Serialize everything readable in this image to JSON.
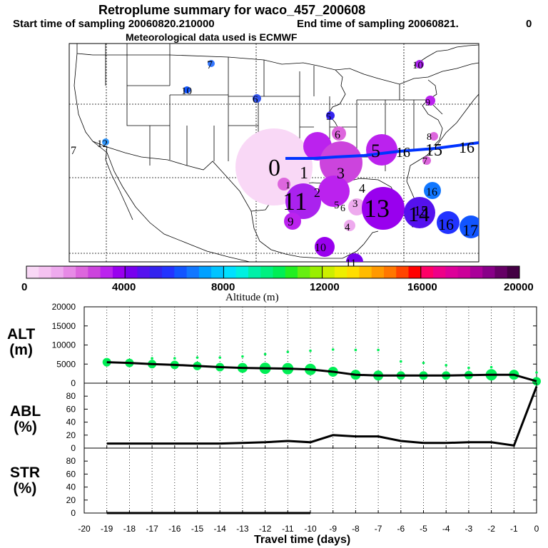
{
  "header": {
    "title": "Retroplume summary for waco_457_200608",
    "start_label": "Start time of sampling 20060820.210000",
    "end_label": "End time of sampling 20060821.",
    "end_suffix": "0",
    "met_label": "Meteorological data used is ECMWF"
  },
  "colorbar": {
    "ticks": [
      "0",
      "4000",
      "8000",
      "12000",
      "16000",
      "20000"
    ],
    "label": "Altitude (m)",
    "colors": [
      "#f9d8f6",
      "#f5c2f1",
      "#eeaaee",
      "#e78ae6",
      "#dd66dd",
      "#cc44dd",
      "#bb22ee",
      "#9900ee",
      "#7700ee",
      "#5511ee",
      "#3322ee",
      "#2233ff",
      "#1155ff",
      "#1177ff",
      "#00a0ff",
      "#00c4ff",
      "#00e0ff",
      "#00f0e0",
      "#00f0a8",
      "#00f080",
      "#00ee55",
      "#22ee22",
      "#66ee11",
      "#99ee00",
      "#ccee00",
      "#eeee00",
      "#ffdd00",
      "#ffbb00",
      "#ff9900",
      "#ff7700",
      "#ff4400",
      "#ff0000",
      "#ff0066",
      "#ee0088",
      "#dd0099",
      "#cc0099",
      "#aa0099",
      "#880088",
      "#660066",
      "#440044"
    ]
  },
  "map": {
    "plume_points": [
      {
        "label": "7",
        "color": "#3377ff"
      },
      {
        "label": "10",
        "color": "#1155ff"
      },
      {
        "label": "6",
        "color": "#3355ee"
      },
      {
        "label": "10",
        "color": "#aa22ee"
      },
      {
        "label": "9",
        "color": "#aa22ee"
      },
      {
        "label": "7",
        "color": "#ffffff"
      },
      {
        "label": "12",
        "color": "#3399ff"
      },
      {
        "label": "5",
        "color": "#3322ee"
      },
      {
        "label": "6",
        "color": "#dd66dd"
      },
      {
        "label": "8",
        "color": "#dd66dd"
      },
      {
        "label": "7",
        "color": "#dd66dd"
      },
      {
        "label": "0",
        "color": "#f5c2f1"
      },
      {
        "label": "1",
        "color": "#cc44dd"
      },
      {
        "label": "2",
        "color": "#cc44dd"
      },
      {
        "label": "3",
        "color": "#dd66dd"
      },
      {
        "label": "4",
        "color": "#cc44dd"
      },
      {
        "label": "11",
        "color": "#cc44dd"
      },
      {
        "label": "9",
        "color": "#bb22ee"
      },
      {
        "label": "5",
        "color": "#cc44dd"
      },
      {
        "label": "6",
        "color": "#cc44dd"
      },
      {
        "label": "4",
        "color": "#eeaaee"
      },
      {
        "label": "3",
        "color": "#eeaaee"
      },
      {
        "label": "1",
        "color": "#f5c2f1"
      },
      {
        "label": "13",
        "color": "#9900ee"
      },
      {
        "label": "14",
        "color": "#7700ee"
      },
      {
        "label": "15",
        "color": "#5511ee"
      },
      {
        "label": "16",
        "color": "#2233ff"
      },
      {
        "label": "17",
        "color": "#1155ff"
      },
      {
        "label": "16",
        "color": "#1177ff"
      },
      {
        "label": "10",
        "color": "#9900ee"
      },
      {
        "label": "11",
        "color": "#7700ee"
      },
      {
        "label": "5",
        "color": "#bb22ee"
      },
      {
        "label": "16",
        "color": "#dd66dd"
      },
      {
        "label": "15",
        "color": "#2233ff"
      },
      {
        "label": "16",
        "color": "#1155ff"
      }
    ]
  },
  "y_labels": {
    "alt": {
      "name": "ALT",
      "unit": "(m)"
    },
    "abl": {
      "name": "ABL",
      "unit": "(%)"
    },
    "str": {
      "name": "STR",
      "unit": "(%)"
    }
  },
  "chart_data": [
    {
      "type": "line",
      "title": "ALT",
      "ylabel": "ALT (m)",
      "x": [
        -19,
        -18,
        -17,
        -16,
        -15,
        -14,
        -13,
        -12,
        -11,
        -10,
        -9,
        -8,
        -7,
        -6,
        -5,
        -4,
        -3,
        -2,
        -1,
        0
      ],
      "x_ticks": [
        "-20",
        "-19",
        "-18",
        "-17",
        "-16",
        "-15",
        "-14",
        "-13",
        "-12",
        "-11",
        "-10",
        "-9",
        "-8",
        "-7",
        "-6",
        "-5",
        "-4",
        "-3",
        "-2",
        "-1",
        "0"
      ],
      "values": [
        5500,
        5300,
        5000,
        4800,
        4500,
        4200,
        4000,
        3900,
        3800,
        3600,
        3000,
        2200,
        2000,
        2000,
        2000,
        2000,
        2100,
        2200,
        2200,
        500
      ],
      "y_ticks": [
        "0",
        "5000",
        "10000",
        "15000",
        "20000"
      ],
      "ylim": [
        0,
        20000
      ],
      "scatter_upper": [
        5600,
        5800,
        6500,
        6500,
        6700,
        6700,
        7000,
        7600,
        8200,
        8500,
        8800,
        8700,
        8700,
        5700,
        5300,
        4700,
        4000,
        4200,
        3200,
        2800
      ],
      "marker_size": [
        6,
        6,
        6,
        6,
        6,
        6,
        7,
        8,
        8,
        8,
        7,
        7,
        7,
        6,
        6,
        6,
        6,
        8,
        7,
        6
      ],
      "xlim": [
        -20,
        0
      ]
    },
    {
      "type": "line",
      "title": "ABL",
      "ylabel": "ABL (%)",
      "x": [
        -19,
        -18,
        -17,
        -16,
        -15,
        -14,
        -13,
        -12,
        -11,
        -10,
        -9,
        -8,
        -7,
        -6,
        -5,
        -4,
        -3,
        -2,
        -1,
        0
      ],
      "values": [
        7,
        7,
        7,
        7,
        7,
        7,
        8,
        9,
        11,
        9,
        20,
        18,
        18,
        11,
        8,
        8,
        9,
        9,
        4,
        95
      ],
      "y_ticks": [
        "0",
        "20",
        "40",
        "60",
        "80"
      ],
      "ylim": [
        0,
        100
      ],
      "xlim": [
        -20,
        0
      ]
    },
    {
      "type": "line",
      "title": "STR",
      "ylabel": "STR (%)",
      "x": [
        -19,
        -18,
        -17,
        -16,
        -15,
        -14,
        -13,
        -12,
        -11,
        -10
      ],
      "values": [
        0,
        0,
        0,
        0,
        0,
        0,
        0,
        0,
        0,
        0
      ],
      "y_ticks": [
        "0",
        "20",
        "40",
        "60",
        "80"
      ],
      "ylim": [
        0,
        100
      ],
      "xlabel": "Travel time (days)",
      "xlim": [
        -20,
        0
      ]
    }
  ]
}
